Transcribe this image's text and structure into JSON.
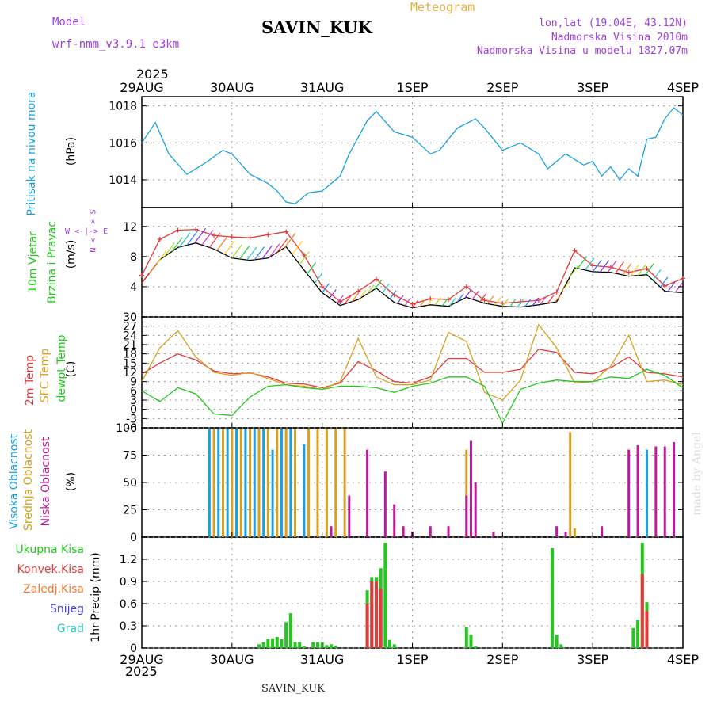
{
  "header": {
    "model_label": "Model",
    "model_name": "wrf-nmm_v3.9.1 e3km",
    "station": "SAVIN_KUK",
    "product": "Meteogram",
    "coords": "lon,lat (19.04E, 43.12N)",
    "elevation": "Nadmorska Visina 2010m",
    "model_elevation": "Nadmorska Visina u modelu 1827.07m",
    "year_top": "2025",
    "year_bottom": "2025",
    "footer_station": "SAVIN_KUK",
    "watermark": "made by Angel"
  },
  "colors": {
    "pressure": "#1aa0e0",
    "temp2m": "#e23b3b",
    "sfc": "#d9a020",
    "dew": "#22c81e",
    "high_cloud": "#1aa0e0",
    "mid_cloud": "#d9a020",
    "low_cloud": "#c01a9a",
    "precip_total": "#22c81e",
    "precip_conv": "#e23b3b",
    "grid": "#999999",
    "header_purple": "#a040e0",
    "header_orange": "#e8b040"
  },
  "time_axis": {
    "labels": [
      "29AUG",
      "30AUG",
      "31AUG",
      "1SEP",
      "2SEP",
      "3SEP",
      "4SEP"
    ]
  },
  "panel_labels": {
    "pressure": {
      "name": "Pritisak na nivou mora",
      "unit": "(hPa)"
    },
    "wind": {
      "name1": "10m Vjetar",
      "name2": "Brzina i Pravac",
      "unit": "(m/s)",
      "compass": "W <-|-> E",
      "compass2": "N <-|-> S"
    },
    "temp": {
      "t2m": "2m Temp",
      "sfc": "SFC Temp",
      "dew": "dewpt Temp",
      "unit": "(C)"
    },
    "cloud": {
      "high": "Visoka Oblacnost",
      "mid": "Srednja Oblacnost",
      "low": "Niska Oblacnost",
      "unit": "(%)"
    },
    "precip": {
      "total": "Ukupna Kisa",
      "conv": "Konvek.Kisa",
      "frz": "Zaledj.Kisa",
      "snow": "Snijeg",
      "grad": "Grad",
      "unit": "1hr Precip (mm)"
    }
  },
  "chart_data": [
    {
      "type": "line",
      "panel": "pressure",
      "ylabel": "(hPa)",
      "ylim": [
        1012.5,
        1018.5
      ],
      "yticks": [
        1014,
        1016,
        1018
      ],
      "series": [
        {
          "name": "Pritisak na nivou mora",
          "days": [
            0,
            0.15,
            0.3,
            0.5,
            0.7,
            0.9,
            1.0,
            1.2,
            1.4,
            1.5,
            1.6,
            1.7,
            1.85,
            2.0,
            2.2,
            2.3,
            2.5,
            2.6,
            2.8,
            3.0,
            3.2,
            3.3,
            3.5,
            3.7,
            3.8,
            4.0,
            4.2,
            4.4,
            4.5,
            4.7,
            4.9,
            5.0,
            5.1,
            5.2,
            5.3,
            5.4,
            5.5,
            5.6,
            5.7,
            5.8,
            5.9,
            6.0
          ],
          "values": [
            1016.0,
            1017.1,
            1015.4,
            1014.3,
            1014.9,
            1015.6,
            1015.4,
            1014.3,
            1013.8,
            1013.4,
            1012.8,
            1012.7,
            1013.3,
            1013.4,
            1014.2,
            1015.4,
            1017.2,
            1017.7,
            1016.6,
            1016.3,
            1015.4,
            1015.6,
            1016.8,
            1017.3,
            1016.8,
            1015.6,
            1016.0,
            1015.4,
            1014.6,
            1015.4,
            1014.8,
            1015.0,
            1014.2,
            1014.7,
            1014.0,
            1014.6,
            1014.2,
            1016.2,
            1016.3,
            1017.3,
            1017.9,
            1017.5
          ]
        }
      ]
    },
    {
      "type": "line",
      "panel": "wind",
      "ylabel": "(m/s)",
      "ylim": [
        0,
        14.5
      ],
      "yticks": [
        0,
        4,
        8,
        12
      ],
      "series": [
        {
          "name": "10m wind speed",
          "days": [
            0,
            0.2,
            0.4,
            0.6,
            0.8,
            1.0,
            1.2,
            1.4,
            1.6,
            1.8,
            2.0,
            2.2,
            2.4,
            2.6,
            2.8,
            3.0,
            3.2,
            3.4,
            3.6,
            3.8,
            4.0,
            4.2,
            4.4,
            4.6,
            4.8,
            5.0,
            5.2,
            5.4,
            5.6,
            5.8,
            6.0
          ],
          "values": [
            4.5,
            7.6,
            9.2,
            9.8,
            9.0,
            7.8,
            7.5,
            7.8,
            9.3,
            6.2,
            3.2,
            1.5,
            2.3,
            3.8,
            1.9,
            1.2,
            1.6,
            1.4,
            2.6,
            1.8,
            1.4,
            1.3,
            1.6,
            2.0,
            6.5,
            6.0,
            5.9,
            5.4,
            5.6,
            3.4,
            3.2
          ]
        },
        {
          "name": "10m gust",
          "days": [
            0,
            0.2,
            0.4,
            0.6,
            0.8,
            1.0,
            1.2,
            1.4,
            1.6,
            1.8,
            2.0,
            2.2,
            2.4,
            2.6,
            2.8,
            3.0,
            3.2,
            3.4,
            3.6,
            3.8,
            4.0,
            4.2,
            4.4,
            4.6,
            4.8,
            5.0,
            5.2,
            5.4,
            5.6,
            5.8,
            6.0
          ],
          "values": [
            5.5,
            10.3,
            11.5,
            11.6,
            10.8,
            10.6,
            10.5,
            10.9,
            11.3,
            8.2,
            4.0,
            2.0,
            3.4,
            5.0,
            2.9,
            1.7,
            2.4,
            2.3,
            4.0,
            2.2,
            1.8,
            2.0,
            2.2,
            3.3,
            8.8,
            6.8,
            6.6,
            5.9,
            6.4,
            4.1,
            5.1
          ]
        }
      ]
    },
    {
      "type": "line",
      "panel": "temperature",
      "ylabel": "(C)",
      "ylim": [
        -6,
        30
      ],
      "yticks": [
        -6,
        -3,
        0,
        3,
        6,
        9,
        12,
        15,
        18,
        21,
        24,
        27,
        30
      ],
      "series": [
        {
          "name": "2m Temp",
          "days": [
            0,
            0.2,
            0.4,
            0.6,
            0.8,
            1.0,
            1.2,
            1.4,
            1.6,
            1.8,
            2.0,
            2.2,
            2.4,
            2.6,
            2.8,
            3.0,
            3.2,
            3.4,
            3.6,
            3.8,
            4.0,
            4.2,
            4.4,
            4.6,
            4.8,
            5.0,
            5.2,
            5.4,
            5.6,
            5.8,
            6.0
          ],
          "values": [
            11.5,
            15.0,
            18.0,
            16.0,
            12.5,
            11.5,
            11.8,
            10.5,
            8.5,
            8.2,
            7.0,
            8.5,
            15.5,
            12.5,
            9.0,
            8.5,
            10.5,
            16.5,
            16.5,
            12.0,
            12.0,
            13.0,
            19.5,
            18.5,
            12.0,
            11.5,
            13.5,
            17.0,
            12.0,
            11.5,
            10.5
          ]
        },
        {
          "name": "SFC Temp",
          "days": [
            0,
            0.2,
            0.4,
            0.6,
            0.8,
            1.0,
            1.2,
            1.4,
            1.6,
            1.8,
            2.0,
            2.2,
            2.4,
            2.6,
            2.8,
            3.0,
            3.2,
            3.4,
            3.6,
            3.8,
            4.0,
            4.2,
            4.4,
            4.6,
            4.8,
            5.0,
            5.2,
            5.4,
            5.6,
            5.8,
            6.0
          ],
          "values": [
            9.0,
            20.0,
            25.5,
            17.0,
            12.0,
            11.0,
            12.0,
            10.0,
            8.0,
            7.5,
            6.5,
            9.0,
            23.0,
            10.5,
            8.0,
            8.0,
            9.5,
            25.0,
            22.0,
            5.5,
            3.0,
            9.5,
            27.5,
            20.0,
            8.5,
            9.0,
            14.0,
            24.0,
            9.0,
            9.5,
            8.0
          ]
        },
        {
          "name": "dewpt Temp",
          "days": [
            0,
            0.2,
            0.4,
            0.6,
            0.8,
            1.0,
            1.2,
            1.4,
            1.6,
            1.8,
            2.0,
            2.2,
            2.4,
            2.6,
            2.8,
            3.0,
            3.2,
            3.4,
            3.6,
            3.8,
            4.0,
            4.2,
            4.4,
            4.6,
            4.8,
            5.0,
            5.2,
            5.4,
            5.6,
            5.8,
            6.0
          ],
          "values": [
            6.0,
            2.5,
            7.0,
            5.0,
            -1.5,
            -2.0,
            4.0,
            7.5,
            8.0,
            7.0,
            6.5,
            7.5,
            7.5,
            7.0,
            5.5,
            7.5,
            8.5,
            10.5,
            10.5,
            7.5,
            -4.5,
            6.5,
            8.5,
            9.5,
            9.0,
            9.0,
            10.5,
            10.0,
            13.0,
            11.0,
            7.0
          ]
        }
      ]
    },
    {
      "type": "bar",
      "panel": "cloud",
      "ylabel": "(%)",
      "ylim": [
        0,
        100
      ],
      "yticks": [
        0,
        25,
        50,
        75,
        100
      ],
      "series": [
        {
          "name": "Visoka Oblacnost",
          "days": [
            0.75,
            0.85,
            0.95,
            1.05,
            1.15,
            1.25,
            1.35,
            1.45,
            1.55,
            1.65,
            1.8,
            5.6
          ],
          "values": [
            99,
            99,
            99,
            99,
            99,
            99,
            99,
            80,
            99,
            99,
            85,
            80
          ]
        },
        {
          "name": "Srednja Oblacnost",
          "days": [
            0.8,
            0.9,
            1.0,
            1.1,
            1.2,
            1.3,
            1.4,
            1.5,
            1.6,
            1.7,
            1.85,
            1.95,
            2.05,
            2.15,
            2.25,
            3.6,
            4.75,
            4.8
          ],
          "values": [
            99,
            99,
            99,
            99,
            99,
            99,
            99,
            99,
            99,
            99,
            99,
            99,
            99,
            99,
            99,
            80,
            96,
            8
          ]
        },
        {
          "name": "Niska Oblacnost",
          "days": [
            2.1,
            2.3,
            2.5,
            2.7,
            2.8,
            2.9,
            3.0,
            3.2,
            3.4,
            3.6,
            3.65,
            3.7,
            3.9,
            4.6,
            4.7,
            5.1,
            5.4,
            5.5,
            5.7,
            5.8,
            5.9
          ],
          "values": [
            10,
            38,
            80,
            60,
            30,
            10,
            5,
            10,
            10,
            38,
            88,
            50,
            5,
            10,
            5,
            10,
            80,
            84,
            83,
            83,
            87
          ]
        }
      ]
    },
    {
      "type": "bar",
      "panel": "precip",
      "ylabel": "1hr Precip (mm)",
      "ylim": [
        0,
        1.5
      ],
      "yticks": [
        0,
        0.3,
        0.6,
        0.9,
        1.2
      ],
      "series": [
        {
          "name": "Ukupna Kisa",
          "days": [
            1.3,
            1.35,
            1.4,
            1.45,
            1.5,
            1.55,
            1.6,
            1.65,
            1.7,
            1.75,
            1.8,
            1.9,
            1.95,
            2.0,
            2.05,
            2.1,
            2.15,
            2.5,
            2.55,
            2.6,
            2.65,
            2.7,
            2.75,
            2.8,
            3.6,
            3.65,
            3.7,
            4.55,
            4.6,
            4.65,
            5.45,
            5.5,
            5.55,
            5.6
          ],
          "values": [
            0.05,
            0.08,
            0.12,
            0.13,
            0.15,
            0.12,
            0.35,
            0.47,
            0.08,
            0.08,
            0.02,
            0.08,
            0.08,
            0.08,
            0.04,
            0.05,
            0.03,
            0.78,
            0.96,
            0.96,
            1.08,
            1.42,
            0.11,
            0.05,
            0.28,
            0.18,
            0.02,
            1.35,
            0.18,
            0.05,
            0.27,
            0.38,
            1.42,
            0.62
          ]
        },
        {
          "name": "Konvek.Kisa",
          "days": [
            2.5,
            2.55,
            2.6,
            2.65,
            5.55,
            5.6
          ],
          "values": [
            0.6,
            0.9,
            0.9,
            0.8,
            1.0,
            0.5
          ]
        }
      ]
    }
  ]
}
